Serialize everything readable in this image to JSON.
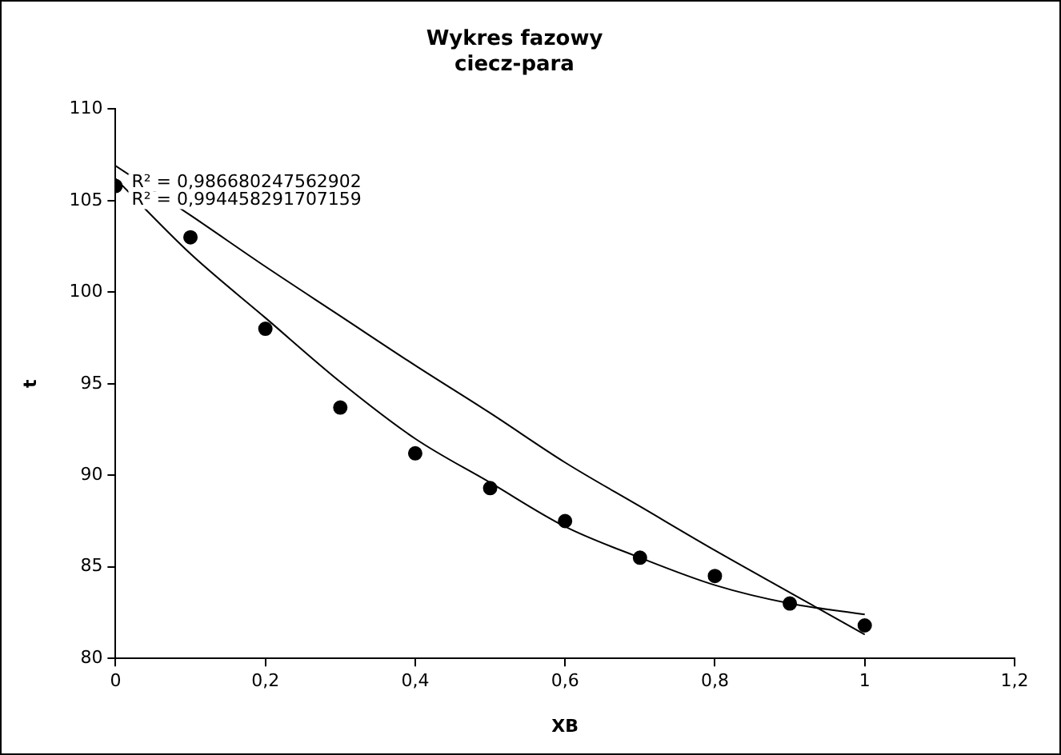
{
  "chart_data": {
    "type": "scatter",
    "title": "Wykres fazowy",
    "subtitle": "ciecz-para",
    "xlabel": "XB",
    "ylabel": "t",
    "annotations": [
      "R² = 0,986680247562902",
      "R² = 0,994458291707159"
    ],
    "marker": "circle",
    "grid": false,
    "legend": false,
    "xlim": [
      0,
      1.2
    ],
    "xticks": [
      0,
      {
        "value": 0.2,
        "label": "0,2"
      },
      {
        "value": 0.4,
        "label": "0,4"
      },
      {
        "value": 0.6,
        "label": "0,6"
      },
      {
        "value": 0.8,
        "label": "0,8"
      },
      1,
      {
        "value": 1.2,
        "label": "1,2"
      }
    ],
    "ylim": [
      80,
      110
    ],
    "yticks": [
      80,
      85,
      90,
      95,
      100,
      105,
      110
    ],
    "x": [
      0,
      0.1,
      0.2,
      0.3,
      0.4,
      0.5,
      0.6,
      0.7,
      0.8,
      0.9,
      1
    ],
    "series": [
      {
        "color": "#000000",
        "values": [
          105.8,
          103.0,
          98.0,
          93.7,
          91.2,
          89.3,
          87.5,
          85.5,
          84.5,
          83.0,
          81.8
        ]
      },
      {
        "type": "line",
        "marker": "none",
        "color": "#000000",
        "x": [
          0,
          0.1,
          0.2,
          0.3,
          0.4,
          0.5,
          0.6,
          0.7,
          0.8,
          0.9,
          1
        ],
        "values": [
          106.9,
          104.2,
          101.4,
          98.7,
          96.0,
          93.4,
          90.7,
          88.3,
          85.9,
          83.6,
          81.3
        ]
      },
      {
        "type": "line",
        "marker": "none",
        "color": "#000000",
        "x": [
          0,
          0.1,
          0.2,
          0.3,
          0.4,
          0.5,
          0.6,
          0.7,
          0.8,
          0.9,
          1
        ],
        "values": [
          106.2,
          102.1,
          98.6,
          95.1,
          92.0,
          89.6,
          87.2,
          85.5,
          84.0,
          83.0,
          82.4
        ]
      }
    ]
  }
}
